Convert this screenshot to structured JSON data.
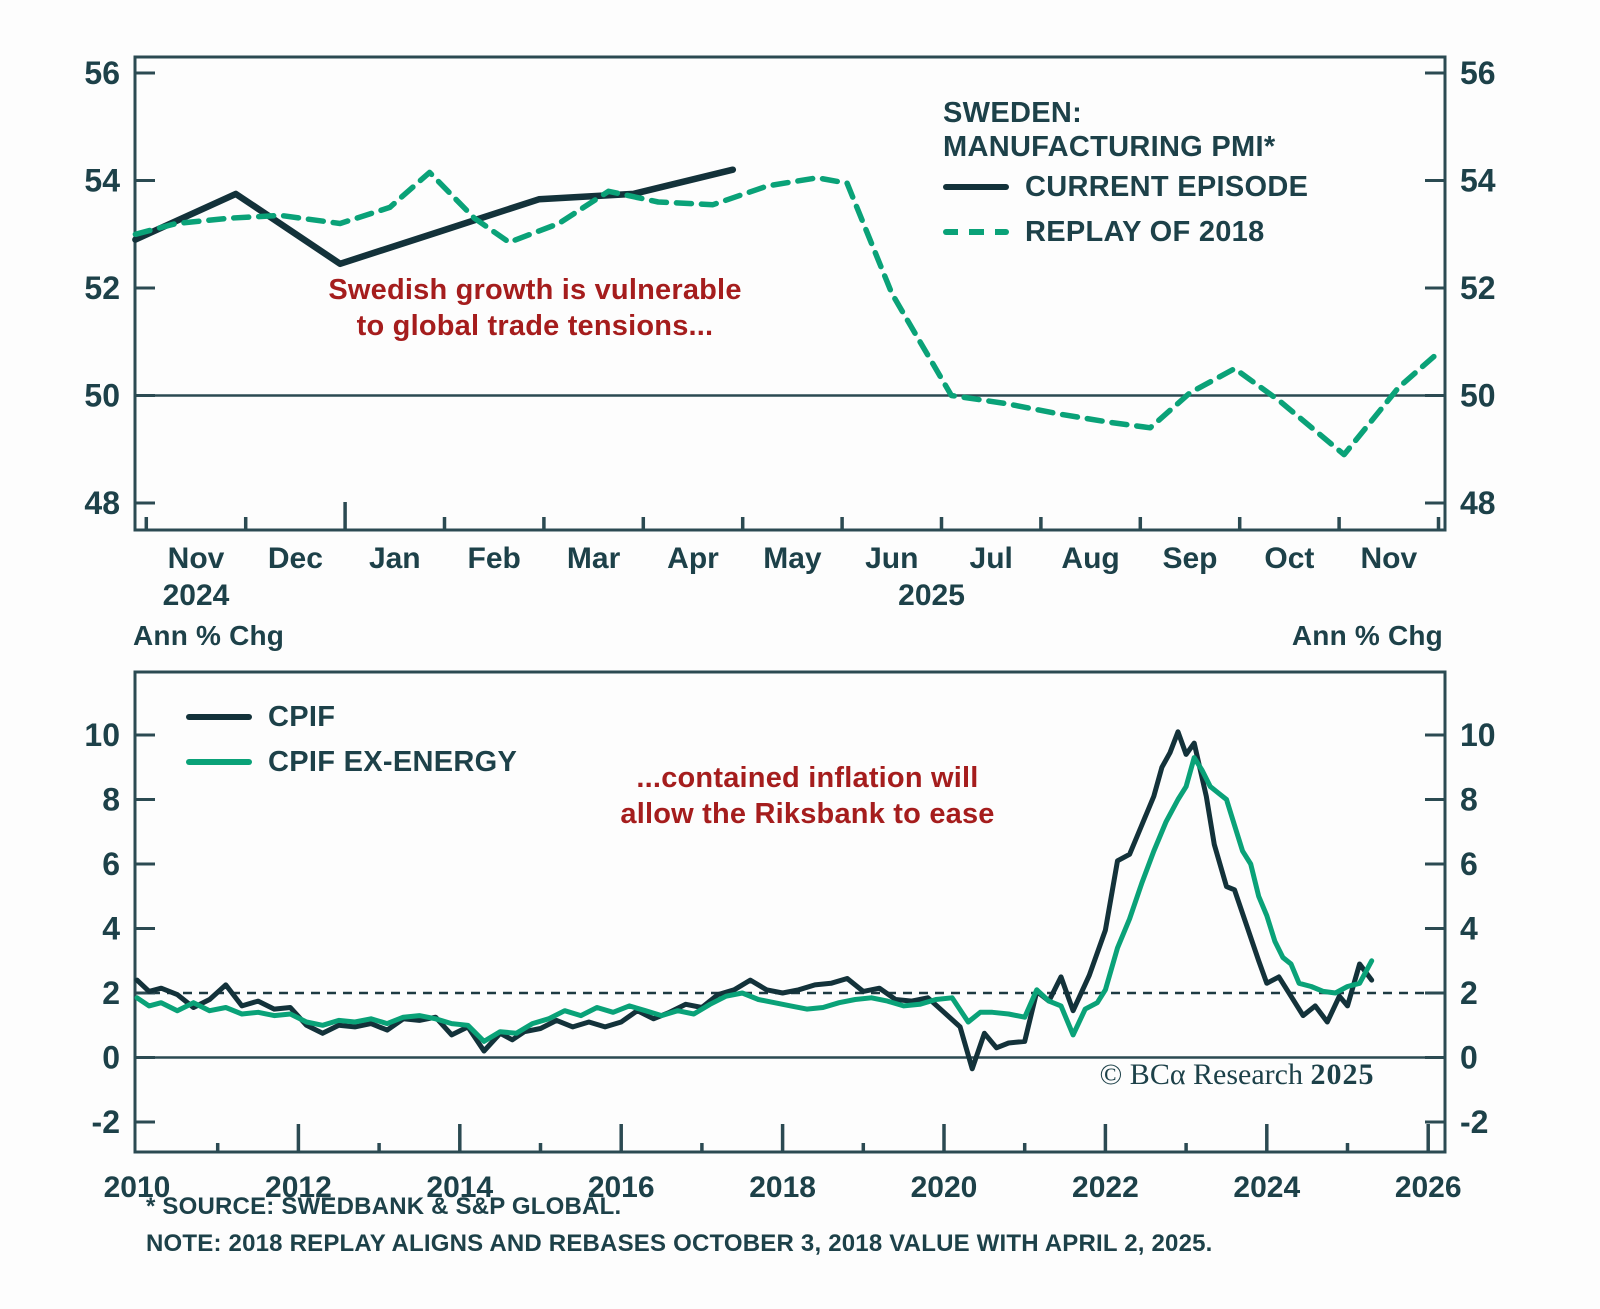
{
  "colors": {
    "dark_line": "#13323a",
    "green_line": "#0aa278",
    "annotation_red": "#a51d1d",
    "text": "#1d4149",
    "axis": "#2b4a52"
  },
  "units_label": "Ann % Chg",
  "notes": {
    "source": "* SOURCE: SWEDBANK & S&P GLOBAL.",
    "replay": "NOTE: 2018 REPLAY ALIGNS AND REBASES OCTOBER 3, 2018 VALUE WITH APRIL 2, 2025."
  },
  "copyright": {
    "text": "© BCα Research",
    "year": "2025"
  },
  "chart_data": [
    {
      "type": "line",
      "title_lines": [
        "SWEDEN:",
        "MANUFACTURING PMI*"
      ],
      "legend_position": "top-right",
      "annotation_lines": [
        "Swedish growth is vulnerable",
        "to global trade tensions..."
      ],
      "x_axis": {
        "unit": "month",
        "labels": [
          "Nov",
          "Dec",
          "Jan",
          "Feb",
          "Mar",
          "Apr",
          "May",
          "Jun",
          "Jul",
          "Aug",
          "Sep",
          "Oct",
          "Nov"
        ],
        "year_labels": [
          {
            "text": "2024",
            "position": 0
          },
          {
            "text": "2025",
            "position": 7.4
          }
        ],
        "range": [
          -0.82,
          12.57
        ]
      },
      "y_axis": {
        "ticks": [
          48,
          50,
          52,
          54,
          56
        ],
        "range": [
          47.6,
          56.3
        ],
        "baseline": 50
      },
      "series": [
        {
          "name": "CURRENT EPISODE",
          "line_style": "solid",
          "color": "#13323a",
          "points": [
            [
              -0.61,
              52.9
            ],
            [
              0.4,
              53.75
            ],
            [
              1.45,
              52.45
            ],
            [
              2.45,
              53.05
            ],
            [
              3.45,
              53.65
            ],
            [
              4.4,
              53.75
            ],
            [
              5.4,
              54.2
            ]
          ]
        },
        {
          "name": "REPLAY OF 2018",
          "line_style": "dashed",
          "color": "#0aa278",
          "points": [
            [
              -0.61,
              53.0
            ],
            [
              -0.2,
              53.2
            ],
            [
              0.35,
              53.3
            ],
            [
              0.85,
              53.35
            ],
            [
              1.45,
              53.2
            ],
            [
              1.95,
              53.5
            ],
            [
              2.35,
              54.15
            ],
            [
              2.8,
              53.3
            ],
            [
              3.15,
              52.85
            ],
            [
              3.65,
              53.2
            ],
            [
              4.15,
              53.8
            ],
            [
              4.65,
              53.6
            ],
            [
              5.2,
              53.55
            ],
            [
              5.75,
              53.9
            ],
            [
              6.25,
              54.05
            ],
            [
              6.55,
              53.95
            ],
            [
              7.0,
              51.9
            ],
            [
              7.6,
              50.0
            ],
            [
              8.15,
              49.85
            ],
            [
              8.7,
              49.65
            ],
            [
              9.2,
              49.5
            ],
            [
              9.6,
              49.4
            ],
            [
              10.0,
              50.05
            ],
            [
              10.45,
              50.5
            ],
            [
              10.9,
              49.9
            ],
            [
              11.55,
              48.9
            ],
            [
              12.1,
              50.15
            ],
            [
              12.5,
              50.8
            ]
          ]
        }
      ]
    },
    {
      "type": "line",
      "units_label": "Ann % Chg",
      "legend_position": "top-left",
      "annotation_lines": [
        "...contained inflation will",
        "allow the Riksbank to ease"
      ],
      "x_axis": {
        "unit": "year",
        "ticks": [
          2010,
          2012,
          2014,
          2016,
          2018,
          2020,
          2022,
          2024,
          2026
        ],
        "range": [
          2009.97,
          2026.2
        ]
      },
      "y_axis": {
        "ticks": [
          -2,
          0,
          2,
          4,
          6,
          8,
          10
        ],
        "range": [
          -2.9,
          12.0
        ],
        "baseline": 0,
        "dashed_reference": 2
      },
      "series": [
        {
          "name": "CPIF",
          "line_style": "solid",
          "color": "#13323a",
          "points": [
            [
              2010.0,
              2.4
            ],
            [
              2010.15,
              2.05
            ],
            [
              2010.3,
              2.15
            ],
            [
              2010.5,
              1.95
            ],
            [
              2010.7,
              1.55
            ],
            [
              2010.9,
              1.8
            ],
            [
              2011.1,
              2.25
            ],
            [
              2011.3,
              1.6
            ],
            [
              2011.5,
              1.75
            ],
            [
              2011.7,
              1.5
            ],
            [
              2011.9,
              1.55
            ],
            [
              2012.1,
              1.0
            ],
            [
              2012.3,
              0.75
            ],
            [
              2012.5,
              1.0
            ],
            [
              2012.7,
              0.95
            ],
            [
              2012.9,
              1.05
            ],
            [
              2013.1,
              0.85
            ],
            [
              2013.3,
              1.2
            ],
            [
              2013.5,
              1.15
            ],
            [
              2013.7,
              1.25
            ],
            [
              2013.9,
              0.7
            ],
            [
              2014.1,
              0.95
            ],
            [
              2014.3,
              0.2
            ],
            [
              2014.5,
              0.75
            ],
            [
              2014.65,
              0.55
            ],
            [
              2014.8,
              0.8
            ],
            [
              2015.0,
              0.9
            ],
            [
              2015.2,
              1.15
            ],
            [
              2015.4,
              0.95
            ],
            [
              2015.6,
              1.1
            ],
            [
              2015.8,
              0.95
            ],
            [
              2016.0,
              1.1
            ],
            [
              2016.2,
              1.45
            ],
            [
              2016.4,
              1.2
            ],
            [
              2016.6,
              1.4
            ],
            [
              2016.8,
              1.65
            ],
            [
              2017.0,
              1.55
            ],
            [
              2017.2,
              1.95
            ],
            [
              2017.4,
              2.1
            ],
            [
              2017.6,
              2.4
            ],
            [
              2017.8,
              2.1
            ],
            [
              2018.0,
              2.0
            ],
            [
              2018.2,
              2.1
            ],
            [
              2018.4,
              2.25
            ],
            [
              2018.6,
              2.3
            ],
            [
              2018.8,
              2.45
            ],
            [
              2019.0,
              2.05
            ],
            [
              2019.2,
              2.15
            ],
            [
              2019.4,
              1.8
            ],
            [
              2019.6,
              1.75
            ],
            [
              2019.8,
              1.85
            ],
            [
              2020.0,
              1.4
            ],
            [
              2020.2,
              0.95
            ],
            [
              2020.35,
              -0.35
            ],
            [
              2020.5,
              0.75
            ],
            [
              2020.65,
              0.3
            ],
            [
              2020.8,
              0.45
            ],
            [
              2021.0,
              0.5
            ],
            [
              2021.15,
              2.05
            ],
            [
              2021.3,
              1.75
            ],
            [
              2021.45,
              2.5
            ],
            [
              2021.6,
              1.45
            ],
            [
              2021.8,
              2.55
            ],
            [
              2022.0,
              3.95
            ],
            [
              2022.15,
              6.1
            ],
            [
              2022.3,
              6.3
            ],
            [
              2022.45,
              7.2
            ],
            [
              2022.6,
              8.1
            ],
            [
              2022.7,
              9.0
            ],
            [
              2022.8,
              9.45
            ],
            [
              2022.9,
              10.1
            ],
            [
              2023.0,
              9.4
            ],
            [
              2023.1,
              9.75
            ],
            [
              2023.25,
              8.1
            ],
            [
              2023.35,
              6.6
            ],
            [
              2023.5,
              5.3
            ],
            [
              2023.6,
              5.2
            ],
            [
              2023.75,
              4.1
            ],
            [
              2023.9,
              3.0
            ],
            [
              2024.0,
              2.3
            ],
            [
              2024.15,
              2.5
            ],
            [
              2024.3,
              1.9
            ],
            [
              2024.45,
              1.3
            ],
            [
              2024.6,
              1.6
            ],
            [
              2024.75,
              1.1
            ],
            [
              2024.9,
              1.9
            ],
            [
              2025.0,
              1.6
            ],
            [
              2025.15,
              2.9
            ],
            [
              2025.3,
              2.4
            ]
          ]
        },
        {
          "name": "CPIF EX-ENERGY",
          "line_style": "solid",
          "color": "#0aa278",
          "points": [
            [
              2010.0,
              1.85
            ],
            [
              2010.15,
              1.6
            ],
            [
              2010.3,
              1.7
            ],
            [
              2010.5,
              1.45
            ],
            [
              2010.7,
              1.7
            ],
            [
              2010.9,
              1.45
            ],
            [
              2011.1,
              1.55
            ],
            [
              2011.3,
              1.35
            ],
            [
              2011.5,
              1.4
            ],
            [
              2011.7,
              1.3
            ],
            [
              2011.9,
              1.35
            ],
            [
              2012.1,
              1.1
            ],
            [
              2012.3,
              1.0
            ],
            [
              2012.5,
              1.15
            ],
            [
              2012.7,
              1.1
            ],
            [
              2012.9,
              1.2
            ],
            [
              2013.1,
              1.05
            ],
            [
              2013.3,
              1.25
            ],
            [
              2013.5,
              1.3
            ],
            [
              2013.7,
              1.2
            ],
            [
              2013.9,
              1.05
            ],
            [
              2014.1,
              1.0
            ],
            [
              2014.3,
              0.5
            ],
            [
              2014.5,
              0.8
            ],
            [
              2014.7,
              0.75
            ],
            [
              2014.9,
              1.05
            ],
            [
              2015.1,
              1.2
            ],
            [
              2015.3,
              1.45
            ],
            [
              2015.5,
              1.3
            ],
            [
              2015.7,
              1.55
            ],
            [
              2015.9,
              1.4
            ],
            [
              2016.1,
              1.6
            ],
            [
              2016.3,
              1.45
            ],
            [
              2016.5,
              1.3
            ],
            [
              2016.7,
              1.45
            ],
            [
              2016.9,
              1.35
            ],
            [
              2017.1,
              1.65
            ],
            [
              2017.3,
              1.9
            ],
            [
              2017.5,
              2.0
            ],
            [
              2017.7,
              1.8
            ],
            [
              2017.9,
              1.7
            ],
            [
              2018.1,
              1.6
            ],
            [
              2018.3,
              1.5
            ],
            [
              2018.5,
              1.55
            ],
            [
              2018.7,
              1.7
            ],
            [
              2018.9,
              1.8
            ],
            [
              2019.1,
              1.85
            ],
            [
              2019.3,
              1.75
            ],
            [
              2019.5,
              1.6
            ],
            [
              2019.7,
              1.65
            ],
            [
              2019.9,
              1.8
            ],
            [
              2020.1,
              1.85
            ],
            [
              2020.3,
              1.1
            ],
            [
              2020.45,
              1.4
            ],
            [
              2020.6,
              1.4
            ],
            [
              2020.8,
              1.35
            ],
            [
              2021.0,
              1.25
            ],
            [
              2021.15,
              2.1
            ],
            [
              2021.3,
              1.75
            ],
            [
              2021.45,
              1.6
            ],
            [
              2021.6,
              0.7
            ],
            [
              2021.75,
              1.5
            ],
            [
              2021.9,
              1.7
            ],
            [
              2022.0,
              2.1
            ],
            [
              2022.15,
              3.4
            ],
            [
              2022.3,
              4.3
            ],
            [
              2022.45,
              5.4
            ],
            [
              2022.6,
              6.4
            ],
            [
              2022.75,
              7.3
            ],
            [
              2022.9,
              8.0
            ],
            [
              2023.0,
              8.4
            ],
            [
              2023.1,
              9.3
            ],
            [
              2023.2,
              8.9
            ],
            [
              2023.3,
              8.4
            ],
            [
              2023.4,
              8.2
            ],
            [
              2023.5,
              8.0
            ],
            [
              2023.6,
              7.2
            ],
            [
              2023.7,
              6.4
            ],
            [
              2023.8,
              6.0
            ],
            [
              2023.9,
              5.0
            ],
            [
              2024.0,
              4.4
            ],
            [
              2024.1,
              3.6
            ],
            [
              2024.2,
              3.1
            ],
            [
              2024.3,
              2.9
            ],
            [
              2024.4,
              2.3
            ],
            [
              2024.55,
              2.2
            ],
            [
              2024.7,
              2.05
            ],
            [
              2024.85,
              2.0
            ],
            [
              2025.0,
              2.2
            ],
            [
              2025.15,
              2.3
            ],
            [
              2025.3,
              3.0
            ]
          ]
        }
      ]
    }
  ]
}
